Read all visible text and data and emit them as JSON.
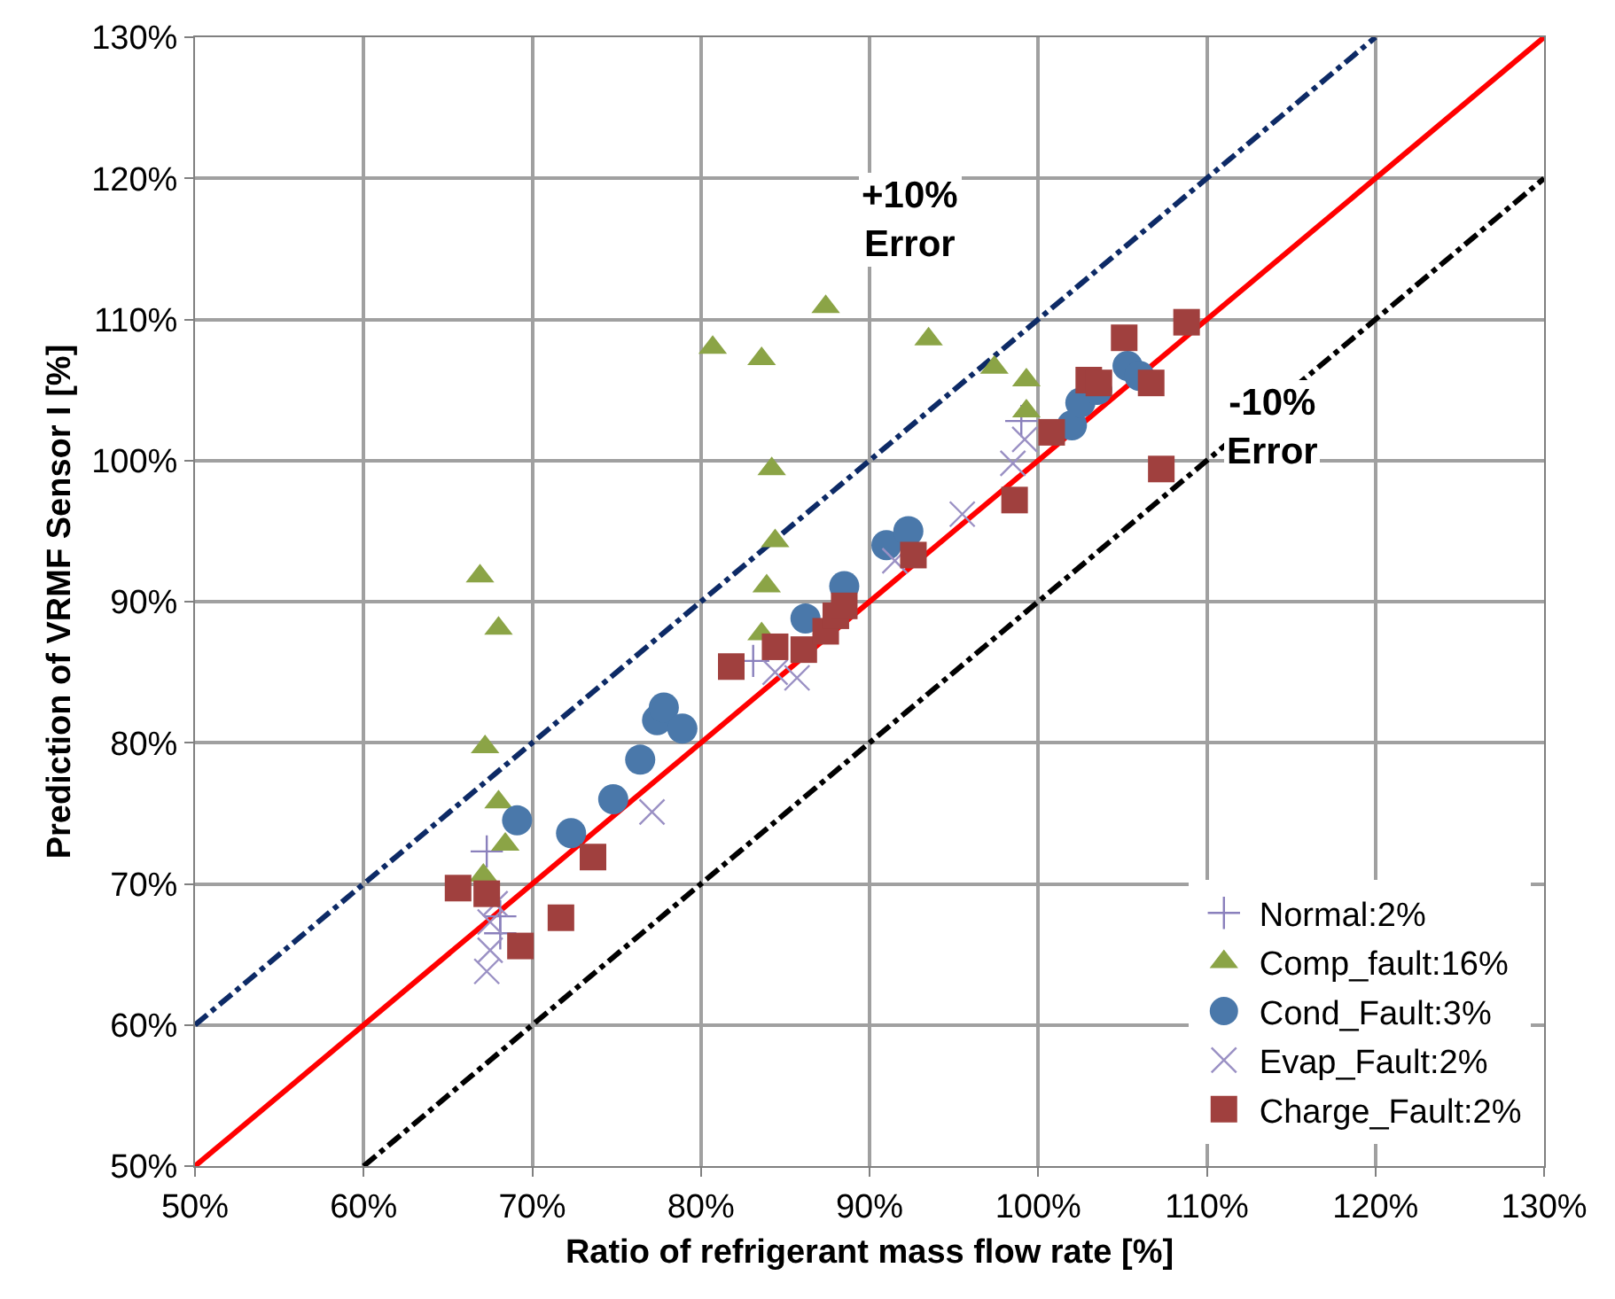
{
  "chart_data": {
    "type": "scatter",
    "xlabel": "Ratio of refrigerant mass flow rate [%]",
    "ylabel": "Prediction of VRMF Sensor I [%]",
    "xlim": [
      50,
      130
    ],
    "ylim": [
      50,
      130
    ],
    "xticks": [
      {
        "value": 50,
        "label": "50%"
      },
      {
        "value": 60,
        "label": "60%"
      },
      {
        "value": 70,
        "label": "70%"
      },
      {
        "value": 80,
        "label": "80%"
      },
      {
        "value": 90,
        "label": "90%"
      },
      {
        "value": 100,
        "label": "100%"
      },
      {
        "value": 110,
        "label": "110%"
      },
      {
        "value": 120,
        "label": "120%"
      },
      {
        "value": 130,
        "label": "130%"
      }
    ],
    "yticks": [
      {
        "value": 50,
        "label": "50%"
      },
      {
        "value": 60,
        "label": "60%"
      },
      {
        "value": 70,
        "label": "70%"
      },
      {
        "value": 80,
        "label": "80%"
      },
      {
        "value": 90,
        "label": "90%"
      },
      {
        "value": 100,
        "label": "100%"
      },
      {
        "value": 110,
        "label": "110%"
      },
      {
        "value": 120,
        "label": "120%"
      },
      {
        "value": 130,
        "label": "130%"
      }
    ],
    "grid": true,
    "legend": "bottom right",
    "series": [
      {
        "type": "line",
        "color": "#0d2a66",
        "line_style": "dashdot",
        "marker": "none",
        "x": [
          50,
          120
        ],
        "values": [
          60,
          130
        ]
      },
      {
        "type": "line",
        "color": "#000000",
        "line_style": "dashdot",
        "marker": "none",
        "x": [
          60,
          130
        ],
        "values": [
          50,
          120
        ]
      },
      {
        "type": "line",
        "color": "#ff0000",
        "line_style": "solid",
        "marker": "none",
        "x": [
          50,
          130
        ],
        "values": [
          50,
          130
        ]
      },
      {
        "name": "Normal:2%",
        "color": "#8a80bc",
        "marker": "cross",
        "x": [
          67.3,
          68.1,
          68.1,
          83.1,
          99.0
        ],
        "values": [
          72.3,
          67.7,
          66.5,
          85.8,
          102.8
        ]
      },
      {
        "name": "Comp_fault:16%",
        "color": "#8ba446",
        "marker": "triangle",
        "x": [
          66.9,
          68.0,
          67.2,
          68.0,
          68.4,
          67.1,
          80.7,
          83.6,
          87.4,
          93.5,
          97.4,
          99.3,
          99.3,
          84.2,
          84.4,
          83.9,
          83.6
        ],
        "values": [
          91.8,
          88.1,
          79.7,
          75.8,
          72.8,
          70.6,
          108.0,
          107.2,
          110.9,
          108.6,
          106.6,
          105.7,
          103.5,
          99.4,
          94.3,
          91.1,
          87.7
        ]
      },
      {
        "name": "Cond_Fault:3%",
        "color": "#4a78aa",
        "marker": "circle",
        "x": [
          69.1,
          72.3,
          74.8,
          76.4,
          77.4,
          77.8,
          78.9,
          86.2,
          88.5,
          91.0,
          92.3,
          102.0,
          102.5,
          103.5,
          105.3,
          106.0
        ],
        "values": [
          74.5,
          73.6,
          76.0,
          78.8,
          81.6,
          82.5,
          81.0,
          88.8,
          91.1,
          94.0,
          95.0,
          102.5,
          104.1,
          105.0,
          106.7,
          106.0
        ]
      },
      {
        "name": "Evap_Fault:2%",
        "color": "#9a90c4",
        "marker": "x",
        "x": [
          67.3,
          67.5,
          67.5,
          67.8,
          77.1,
          84.4,
          85.7,
          91.5,
          95.5,
          98.5,
          99.2
        ],
        "values": [
          63.8,
          65.3,
          67.3,
          68.6,
          75.1,
          85.0,
          84.6,
          92.9,
          96.2,
          99.8,
          101.5
        ]
      },
      {
        "name": "Charge_Fault:2%",
        "color": "#a0403e",
        "marker": "square",
        "x": [
          65.6,
          67.3,
          69.3,
          71.7,
          73.6,
          81.8,
          84.4,
          86.1,
          87.4,
          88.0,
          88.5,
          92.6,
          98.6,
          100.8,
          103.0,
          103.6,
          105.1,
          106.7,
          108.8,
          107.3
        ],
        "values": [
          69.7,
          69.3,
          65.6,
          67.6,
          71.9,
          85.4,
          86.8,
          86.6,
          87.9,
          89.0,
          89.7,
          93.3,
          97.2,
          102.0,
          105.7,
          105.5,
          108.7,
          105.5,
          109.8,
          99.4
        ]
      }
    ],
    "annotations": [
      "+10%\nError",
      "-10%\nError"
    ]
  }
}
